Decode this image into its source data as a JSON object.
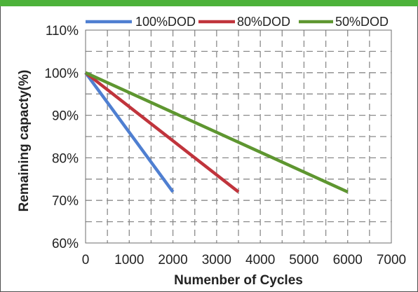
{
  "colors": {
    "band": "#4db23a",
    "series_100": "#4f7fd1",
    "series_80": "#c0343c",
    "series_50": "#5e9630",
    "grid": "#8a8a8a"
  },
  "chart_data": {
    "type": "line",
    "title": "",
    "xlabel": "Numenber of Cycles",
    "ylabel": "Remaining capacty(%)",
    "xlim": [
      0,
      7000
    ],
    "ylim": [
      60,
      110
    ],
    "x_ticks": [
      0,
      1000,
      2000,
      3000,
      4000,
      5000,
      6000,
      7000
    ],
    "y_ticks": [
      60,
      70,
      80,
      90,
      100,
      110
    ],
    "x_tick_labels": [
      "0",
      "1000",
      "2000",
      "3000",
      "4000",
      "5000",
      "6000",
      "7000"
    ],
    "y_tick_labels": [
      "60%",
      "70%",
      "80%",
      "90%",
      "100%",
      "110%"
    ],
    "grid": true,
    "legend_position": "top",
    "series": [
      {
        "name": "100%DOD",
        "color_key": "series_100",
        "x": [
          0,
          2000
        ],
        "y": [
          100,
          72
        ]
      },
      {
        "name": "80%DOD",
        "color_key": "series_80",
        "x": [
          0,
          3500
        ],
        "y": [
          100,
          72
        ]
      },
      {
        "name": "50%DOD",
        "color_key": "series_50",
        "x": [
          0,
          6000
        ],
        "y": [
          100,
          72
        ]
      }
    ]
  }
}
